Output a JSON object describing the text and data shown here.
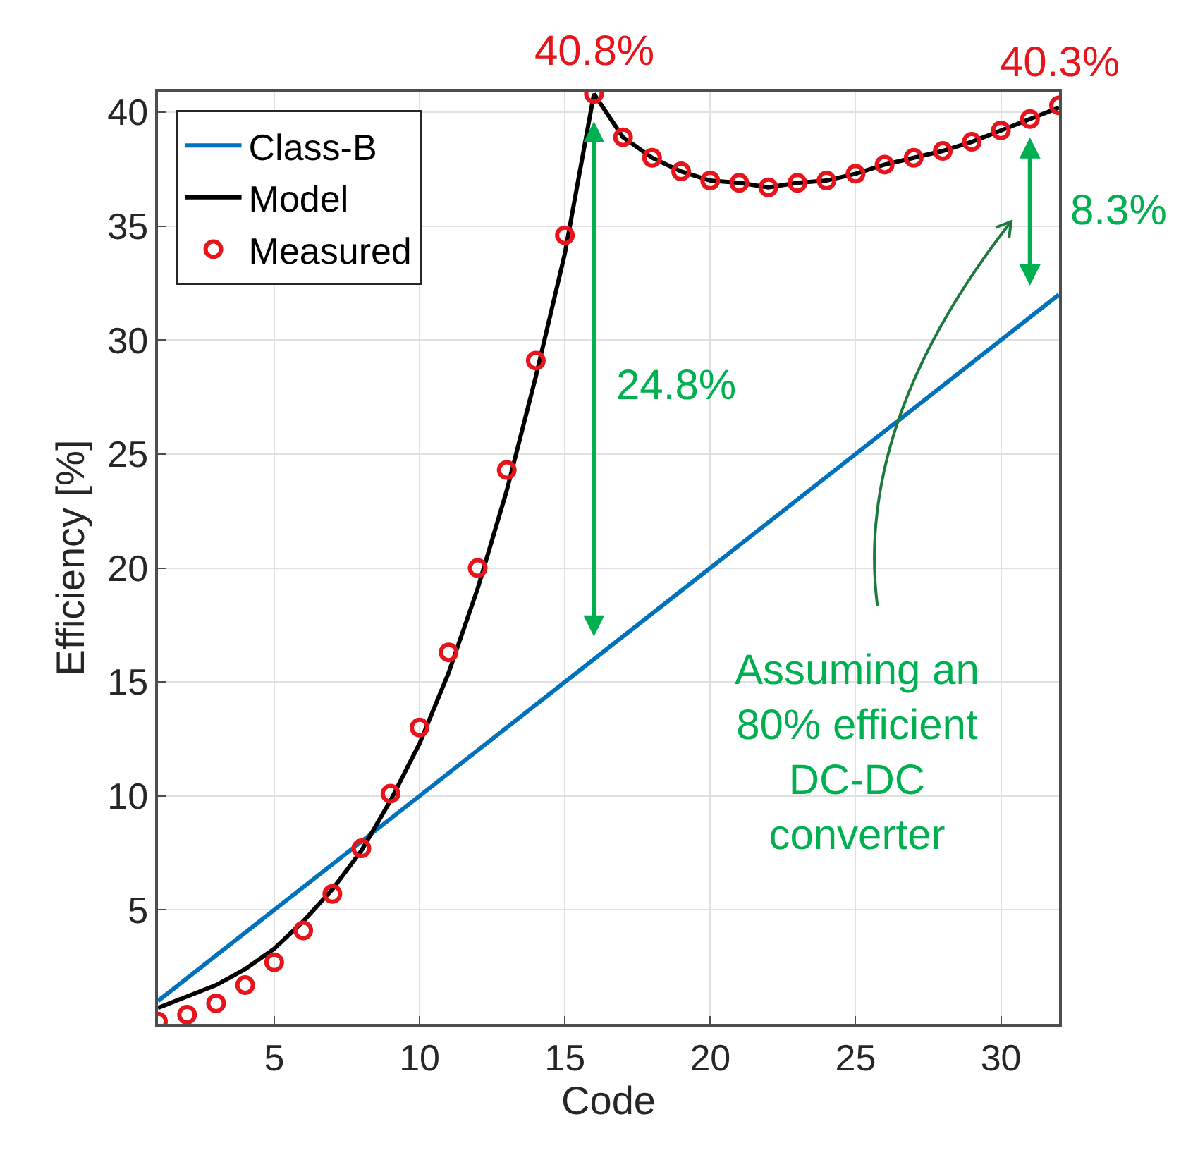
{
  "chart_data": {
    "type": "line",
    "xlabel": "Code",
    "ylabel": "Efficiency [%]",
    "x": [
      1,
      2,
      3,
      4,
      5,
      6,
      7,
      8,
      9,
      10,
      11,
      12,
      13,
      14,
      15,
      16,
      17,
      18,
      19,
      20,
      21,
      22,
      23,
      24,
      25,
      26,
      27,
      28,
      29,
      30,
      31,
      32
    ],
    "series": [
      {
        "name": "Class-B",
        "color": "#0072bd",
        "x": [
          1,
          32
        ],
        "values": [
          1,
          32
        ]
      },
      {
        "name": "Model",
        "color": "#000000",
        "values": [
          0.7,
          1.2,
          1.7,
          2.4,
          3.3,
          4.5,
          5.9,
          7.6,
          9.8,
          12.3,
          15.4,
          19.1,
          23.4,
          28.4,
          33.8,
          40.8,
          38.9,
          38.0,
          37.4,
          37.0,
          36.9,
          36.7,
          36.9,
          37.0,
          37.3,
          37.7,
          38.0,
          38.3,
          38.7,
          39.2,
          39.7,
          40.2
        ]
      },
      {
        "name": "Measured",
        "type": "scatter",
        "marker": "circle",
        "color": "#e8141b",
        "values": [
          0.1,
          0.4,
          0.9,
          1.7,
          2.7,
          4.1,
          5.7,
          7.7,
          10.1,
          13.0,
          16.3,
          20.0,
          24.3,
          29.1,
          34.6,
          40.8,
          38.9,
          38.0,
          37.4,
          37.0,
          36.9,
          36.7,
          36.9,
          37.0,
          37.3,
          37.7,
          38.0,
          38.3,
          38.7,
          39.2,
          39.7,
          40.3
        ]
      }
    ],
    "xlim": [
      1,
      32
    ],
    "xticks": [
      5,
      10,
      15,
      20,
      25,
      30
    ],
    "ylim": [
      0,
      40.9
    ],
    "yticks": [
      5,
      10,
      15,
      20,
      25,
      30,
      35,
      40
    ],
    "grid": true,
    "legend": "top left",
    "annotations": [
      {
        "text": "40.8%",
        "x": 16,
        "y": 40.8
      },
      {
        "text": "40.3%",
        "x": 32,
        "y": 40.3
      },
      "24.8%",
      "8.3%",
      "Assuming an 80% efficient DC-DC converter"
    ]
  }
}
